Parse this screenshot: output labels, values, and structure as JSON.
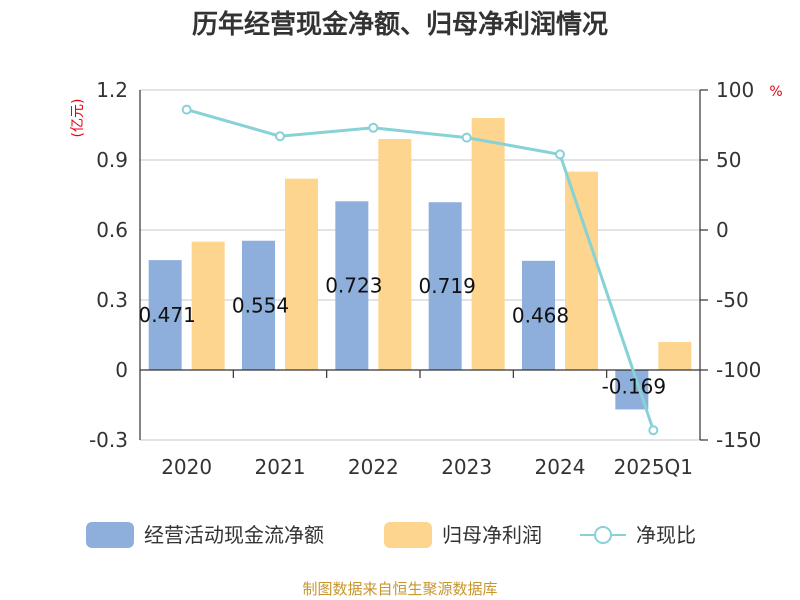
{
  "chart_data": {
    "type": "bar",
    "title": "历年经营现金净额、归母净利润情况",
    "categories": [
      "2020",
      "2021",
      "2022",
      "2023",
      "2024",
      "2025Q1"
    ],
    "left_axis": {
      "unit_label": "(亿元)",
      "ylim": [
        -0.3,
        1.2
      ],
      "ticks": [
        "-0.3",
        "0",
        "0.3",
        "0.6",
        "0.9",
        "1.2"
      ],
      "tick_values": [
        -0.3,
        0,
        0.3,
        0.6,
        0.9,
        1.2
      ]
    },
    "right_axis": {
      "unit_label": "%",
      "ylim": [
        -150,
        100
      ],
      "ticks": [
        "-150",
        "-100",
        "-50",
        "0",
        "50",
        "100"
      ],
      "tick_values": [
        -150,
        -100,
        -50,
        0,
        50,
        100
      ]
    },
    "series": [
      {
        "name": "经营活动现金流净额",
        "type": "bar",
        "axis": "left",
        "color": "#8eaedb",
        "values": [
          0.471,
          0.554,
          0.723,
          0.719,
          0.468,
          -0.169
        ],
        "labels": [
          "0.471",
          "0.554",
          "0.723",
          "0.719",
          "0.468",
          "-0.169"
        ]
      },
      {
        "name": "归母净利润",
        "type": "bar",
        "axis": "left",
        "color": "#fdd58f",
        "values": [
          0.55,
          0.82,
          0.99,
          1.08,
          0.85,
          0.12
        ]
      },
      {
        "name": "净现比",
        "type": "line",
        "axis": "right",
        "color": "#86d2d6",
        "values": [
          86,
          67,
          73,
          66,
          54,
          -143
        ]
      }
    ],
    "grid": true,
    "legend_position": "bottom"
  },
  "footer": {
    "source": "制图数据来自恒生聚源数据库"
  }
}
